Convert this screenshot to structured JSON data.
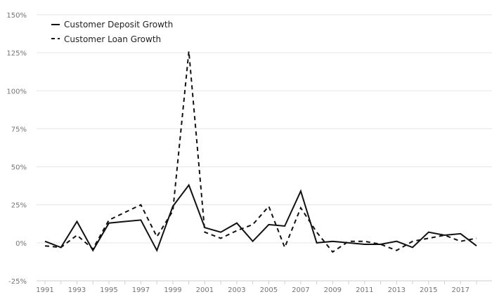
{
  "chart_data": {
    "type": "line",
    "x": [
      1991,
      1992,
      1993,
      1994,
      1995,
      1996,
      1997,
      1998,
      1999,
      2000,
      2001,
      2002,
      2003,
      2004,
      2005,
      2006,
      2007,
      2008,
      2009,
      2010,
      2011,
      2012,
      2013,
      2014,
      2015,
      2016,
      2017,
      2018
    ],
    "series": [
      {
        "name": "Customer Deposit Growth",
        "style": "solid",
        "values": [
          1,
          -3,
          14,
          -5,
          13,
          14,
          15,
          -5,
          24,
          38,
          10,
          7,
          13,
          1,
          12,
          11,
          34,
          0,
          1,
          0,
          -1,
          -1,
          1,
          -3,
          7,
          5,
          6,
          -2
        ]
      },
      {
        "name": "Customer Loan Growth",
        "style": "dashed",
        "values": [
          -2,
          -3,
          5,
          -4,
          15,
          20,
          25,
          4,
          21,
          126,
          7,
          3,
          8,
          12,
          24,
          -3,
          23,
          7,
          -6,
          1,
          1,
          -1,
          -5,
          1,
          3,
          5,
          1,
          3
        ]
      }
    ],
    "y_ticks": [
      "150%",
      "125%",
      "100%",
      "75%",
      "50%",
      "25%",
      "0%",
      "-25%"
    ],
    "x_ticks": [
      "1991",
      "1993",
      "1995",
      "1997",
      "1999",
      "2001",
      "2003",
      "2005",
      "2007",
      "2009",
      "2011",
      "2013",
      "2015",
      "2017"
    ],
    "ylim": [
      -25,
      150
    ],
    "xlim": [
      1991,
      2018
    ],
    "grid": true,
    "legend_position": "top-left",
    "line_color": "#111111",
    "grid_color": "#e6e6e6",
    "title": "",
    "xlabel": "",
    "ylabel": ""
  }
}
